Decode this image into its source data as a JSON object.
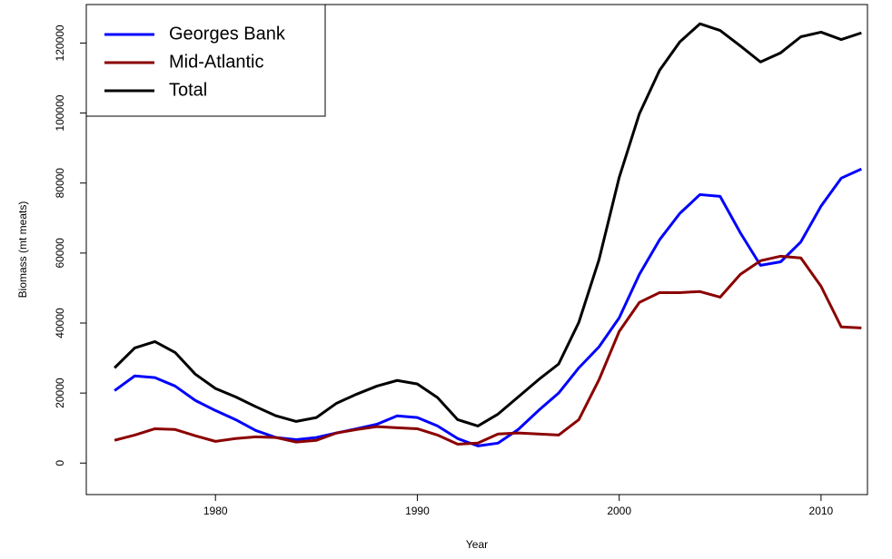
{
  "chart_data": {
    "type": "line",
    "x_label": "Year",
    "y_label": "Biomass (mt meats)",
    "x": [
      1975,
      1976,
      1977,
      1978,
      1979,
      1980,
      1981,
      1982,
      1983,
      1984,
      1985,
      1986,
      1987,
      1988,
      1989,
      1990,
      1991,
      1992,
      1993,
      1994,
      1995,
      1996,
      1997,
      1998,
      1999,
      2000,
      2001,
      2002,
      2003,
      2004,
      2005,
      2006,
      2007,
      2008,
      2009,
      2010,
      2011,
      2012
    ],
    "series": [
      {
        "name": "Georges Bank",
        "color": "#0000ff",
        "values": [
          20700,
          24900,
          24400,
          22000,
          17900,
          15000,
          12400,
          9300,
          7300,
          6700,
          7300,
          8600,
          9800,
          11100,
          13500,
          13000,
          10600,
          7000,
          4900,
          5700,
          9600,
          15000,
          20000,
          27200,
          33200,
          41500,
          53900,
          63800,
          71300,
          76700,
          76200,
          65800,
          56500,
          57500,
          63200,
          73400,
          81400,
          84000
        ]
      },
      {
        "name": "Mid-Atlantic",
        "color": "#8b0000",
        "values": [
          6500,
          8000,
          9800,
          9600,
          7800,
          6200,
          7000,
          7500,
          7300,
          6000,
          6500,
          8600,
          9600,
          10400,
          10100,
          9800,
          8000,
          5400,
          5700,
          8300,
          8600,
          8300,
          8000,
          12400,
          23800,
          37600,
          45900,
          48700,
          48700,
          49000,
          47400,
          53900,
          57800,
          59100,
          58600,
          50500,
          38900,
          38600
        ]
      },
      {
        "name": "Total",
        "color": "#000000",
        "values": [
          27200,
          32900,
          34700,
          31600,
          25400,
          21300,
          18900,
          16100,
          13500,
          11900,
          13000,
          17100,
          19700,
          22000,
          23600,
          22600,
          18700,
          12400,
          10600,
          14000,
          18900,
          23800,
          28300,
          40200,
          58100,
          81600,
          99800,
          112200,
          120300,
          125500,
          123600,
          119200,
          114600,
          117200,
          121800,
          123100,
          121000,
          122900
        ]
      }
    ],
    "xlim": [
      1973.6,
      2012.3
    ],
    "ylim": [
      -9000,
      131000
    ],
    "xticks": [
      1980,
      1990,
      2000,
      2010
    ],
    "yticks": [
      0,
      20000,
      40000,
      60000,
      80000,
      100000,
      120000
    ],
    "legend_position": "top-left"
  }
}
